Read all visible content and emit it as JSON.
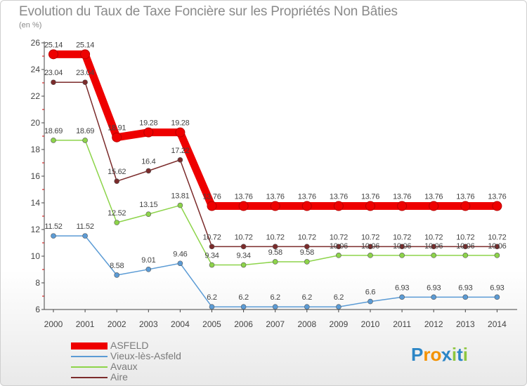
{
  "title": "Evolution du Taux de Taxe Foncière sur les Propriétés Non Bâties",
  "unit_label": "(en %)",
  "logo": {
    "letters": [
      "P",
      "r",
      "o",
      "x",
      "i",
      "t",
      "i"
    ],
    "colors": [
      "#2c86c6",
      "#f39200",
      "#f39200",
      "#2c86c6",
      "#8dc63f",
      "#2c86c6",
      "#8dc63f"
    ]
  },
  "chart_data": {
    "type": "line",
    "title": "Evolution du Taux de Taxe Foncière sur les Propriétés Non Bâties",
    "ylabel": "(en %)",
    "xlabel": "",
    "x": [
      "2000",
      "2001",
      "2002",
      "2003",
      "2004",
      "2005",
      "2006",
      "2007",
      "2008",
      "2009",
      "2010",
      "2011",
      "2012",
      "2013",
      "2014"
    ],
    "ylim": [
      6,
      26
    ],
    "yticks": [
      "6",
      "8",
      "10",
      "12",
      "14",
      "16",
      "18",
      "20",
      "22",
      "24",
      "26"
    ],
    "legend_position": "bottom-left",
    "series": [
      {
        "name": "ASFELD",
        "color": "#ee0000",
        "values": [
          25.14,
          25.14,
          18.91,
          19.28,
          19.28,
          13.76,
          13.76,
          13.76,
          13.76,
          13.76,
          13.76,
          13.76,
          13.76,
          13.76,
          13.76
        ],
        "labels": [
          "25.14",
          "25.14",
          "18.91",
          "19.28",
          "19.28",
          "13.76",
          "13.76",
          "13.76",
          "13.76",
          "13.76",
          "13.76",
          "13.76",
          "13.76",
          "13.76",
          "13.76"
        ]
      },
      {
        "name": "Vieux-lès-Asfeld",
        "color": "#5b9bd5",
        "values": [
          11.52,
          11.52,
          8.58,
          9.01,
          9.46,
          6.2,
          6.2,
          6.2,
          6.2,
          6.2,
          6.6,
          6.93,
          6.93,
          6.93,
          6.93
        ],
        "labels": [
          "11.52",
          "11.52",
          "8.58",
          "9.01",
          "9.46",
          "6.2",
          "6.2",
          "6.2",
          "6.2",
          "6.2",
          "6.6",
          "6.93",
          "6.93",
          "6.93",
          "6.93"
        ]
      },
      {
        "name": "Avaux",
        "color": "#8dd44a",
        "values": [
          18.69,
          18.69,
          12.52,
          13.15,
          13.81,
          9.34,
          9.34,
          9.58,
          9.58,
          10.06,
          10.06,
          10.06,
          10.06,
          10.06,
          10.06
        ],
        "labels": [
          "18.69",
          "18.69",
          "12.52",
          "13.15",
          "13.81",
          "9.34",
          "9.34",
          "9.58",
          "9.58",
          "10.06",
          "10.06",
          "10.06",
          "10.06",
          "10.06",
          "10.06"
        ]
      },
      {
        "name": "Aire",
        "color": "#7b2b2b",
        "values": [
          23.04,
          23.04,
          15.62,
          16.4,
          17.22,
          10.72,
          10.72,
          10.72,
          10.72,
          10.72,
          10.72,
          10.72,
          10.72,
          10.72,
          10.72
        ],
        "labels": [
          "23.04",
          "23.04",
          "15.62",
          "16.4",
          "17.22",
          "10.72",
          "10.72",
          "10.72",
          "10.72",
          "10.72",
          "10.72",
          "10.72",
          "10.72",
          "10.72",
          "10.72"
        ]
      }
    ]
  }
}
